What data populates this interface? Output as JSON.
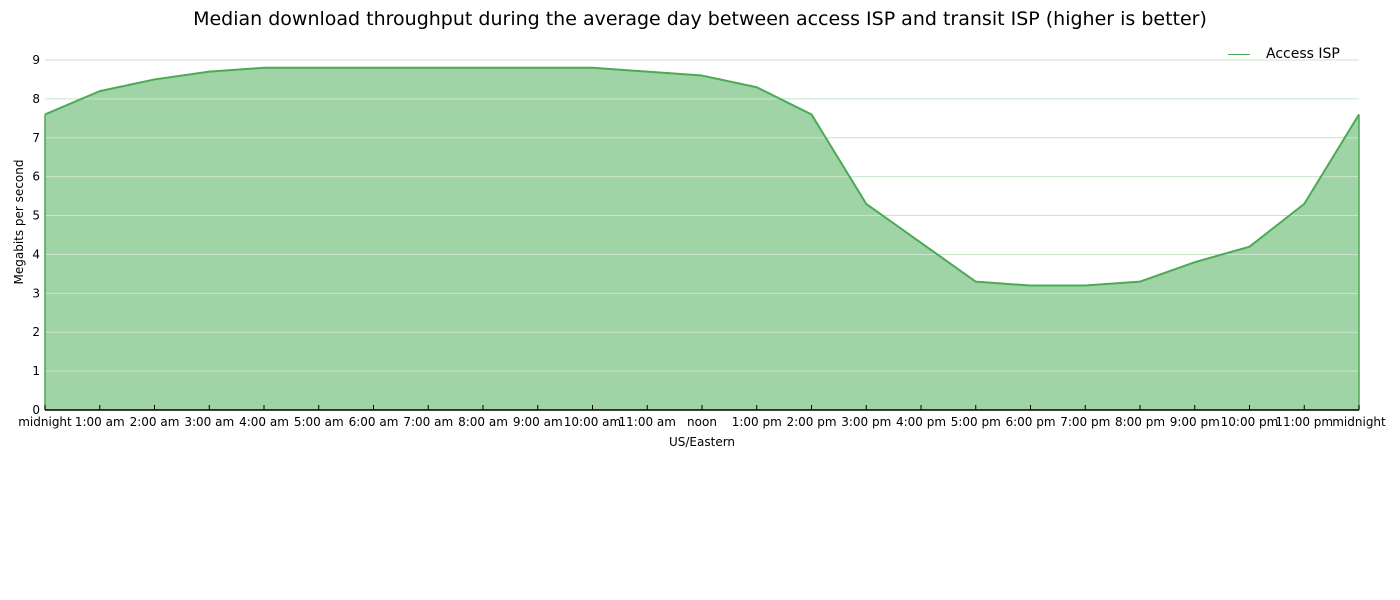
{
  "chart_data": {
    "type": "area",
    "title": "Median download throughput during the average day between access ISP and transit ISP (higher is better)",
    "xlabel": "US/Eastern",
    "ylabel": "Megabits per second",
    "categories": [
      "midnight",
      "1:00 am",
      "2:00 am",
      "3:00 am",
      "4:00 am",
      "5:00 am",
      "6:00 am",
      "7:00 am",
      "8:00 am",
      "9:00 am",
      "10:00 am",
      "11:00 am",
      "noon",
      "1:00 pm",
      "2:00 pm",
      "3:00 pm",
      "4:00 pm",
      "5:00 pm",
      "6:00 pm",
      "7:00 pm",
      "8:00 pm",
      "9:00 pm",
      "10:00 pm",
      "11:00 pm",
      "midnight"
    ],
    "series": [
      {
        "name": "Access ISP",
        "values": [
          7.6,
          8.2,
          8.5,
          8.7,
          8.8,
          8.8,
          8.8,
          8.8,
          8.8,
          8.8,
          8.8,
          8.7,
          8.6,
          8.3,
          7.6,
          5.3,
          4.3,
          3.3,
          3.2,
          3.2,
          3.3,
          3.8,
          4.2,
          5.3,
          7.6
        ]
      }
    ],
    "ylim": [
      0,
      9
    ],
    "yticks": [
      0,
      1,
      2,
      3,
      4,
      5,
      6,
      7,
      8,
      9
    ],
    "grid": true,
    "legend_position": "top-right",
    "colors": {
      "line": "#4aaa55",
      "fill": "#a0d3a6",
      "grid": "#c8e6cb"
    }
  }
}
